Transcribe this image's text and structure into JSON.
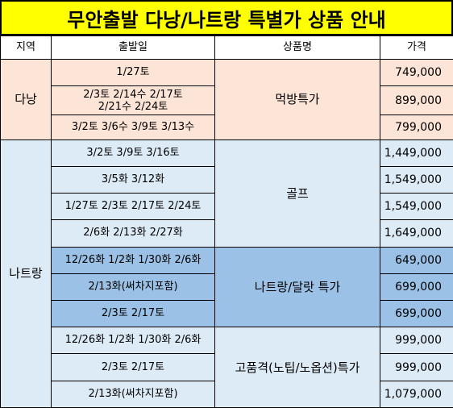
{
  "title": "무안출발 다낭/나트랑 특별가 상품 안내",
  "headers": {
    "region": "지역",
    "date": "출발일",
    "product": "상품명",
    "price": "가격"
  },
  "danang": {
    "region": "다낭",
    "product": "먹방특가",
    "rows": [
      {
        "date": "1/27토",
        "price": "749,000"
      },
      {
        "date_line1": "2/3토 2/14수 2/17토",
        "date_line2": "2/21수 2/24토",
        "price": "899,000"
      },
      {
        "date": "3/2토 3/6수 3/9토 3/13수",
        "price": "799,000"
      }
    ]
  },
  "nhatrang": {
    "region": "나트랑",
    "groups": [
      {
        "product": "골프",
        "rows": [
          {
            "date": "3/2토 3/9토 3/16토",
            "price": "1,449,000"
          },
          {
            "date": "3/5화 3/12화",
            "price": "1,549,000"
          },
          {
            "date": "1/27토 2/3토  2/17토 2/24토",
            "price": "1,549,000"
          },
          {
            "date": "2/6화 2/13화 2/27화",
            "price": "1,649,000"
          }
        ]
      },
      {
        "product": "나트랑/달랏 특가",
        "rows": [
          {
            "date": "12/26화 1/2화 1/30화 2/6화",
            "price": "649,000"
          },
          {
            "date": "2/13화(써차지포함)",
            "price": "699,000"
          },
          {
            "date": "2/3토 2/17토",
            "price": "699,000"
          }
        ]
      },
      {
        "product": "고품격(노팁/노옵션)특가",
        "rows": [
          {
            "date": "12/26화 1/2화 1/30화 2/6화",
            "price": "999,000"
          },
          {
            "date": "2/3토 2/17토",
            "price": "999,000"
          },
          {
            "date": "2/13화(써차지포함)",
            "price": "1,079,000"
          }
        ]
      }
    ]
  }
}
